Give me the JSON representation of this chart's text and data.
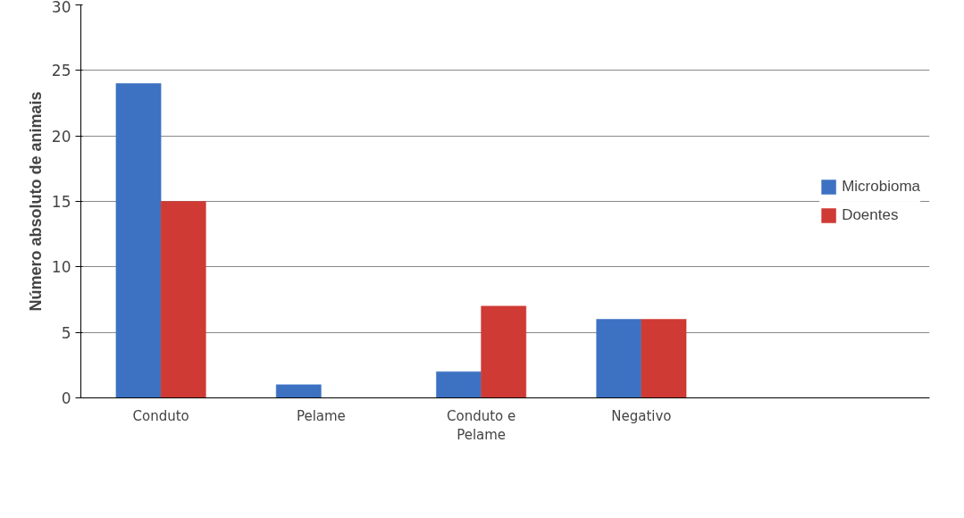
{
  "chart_data": {
    "type": "bar",
    "ylabel": "Número absoluto de animais",
    "categories": [
      "Conduto",
      "Pelame",
      "Conduto e Pelame",
      "Negativo"
    ],
    "series": [
      {
        "name": "Microbioma",
        "color": "#3d72c2",
        "values": [
          24,
          1,
          2,
          6
        ]
      },
      {
        "name": "Doentes",
        "color": "#cf3a35",
        "values": [
          15,
          0,
          7,
          6
        ]
      }
    ],
    "ylim": [
      0,
      30
    ],
    "yticks": [
      0,
      5,
      10,
      15,
      20,
      25,
      30
    ],
    "grid": "y",
    "legend": "right"
  }
}
